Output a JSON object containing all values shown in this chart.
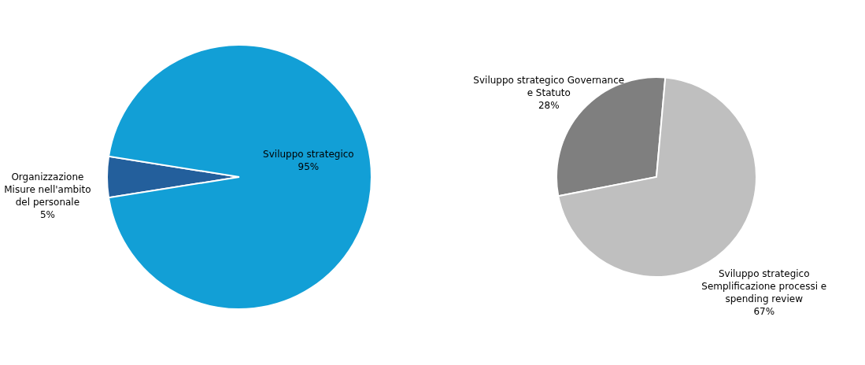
{
  "chart_data": [
    {
      "type": "pie",
      "categories": [
        "Organizzazione Misure nell'ambito del personale",
        "Sviluppo strategico"
      ],
      "values": [
        5,
        95
      ],
      "colors": [
        "#235f9c",
        "#129fd6"
      ],
      "value_labels": [
        "5%",
        "95%"
      ],
      "legend": false
    },
    {
      "type": "pie",
      "categories": [
        "Sviluppo strategico Governance e Statuto",
        "Sviluppo strategico Semplificazione processi e spending review"
      ],
      "values": [
        28,
        67
      ],
      "colors": [
        "#7f7f7f",
        "#bfbfbf"
      ],
      "value_labels": [
        "28%",
        "67%"
      ],
      "legend": false
    }
  ]
}
